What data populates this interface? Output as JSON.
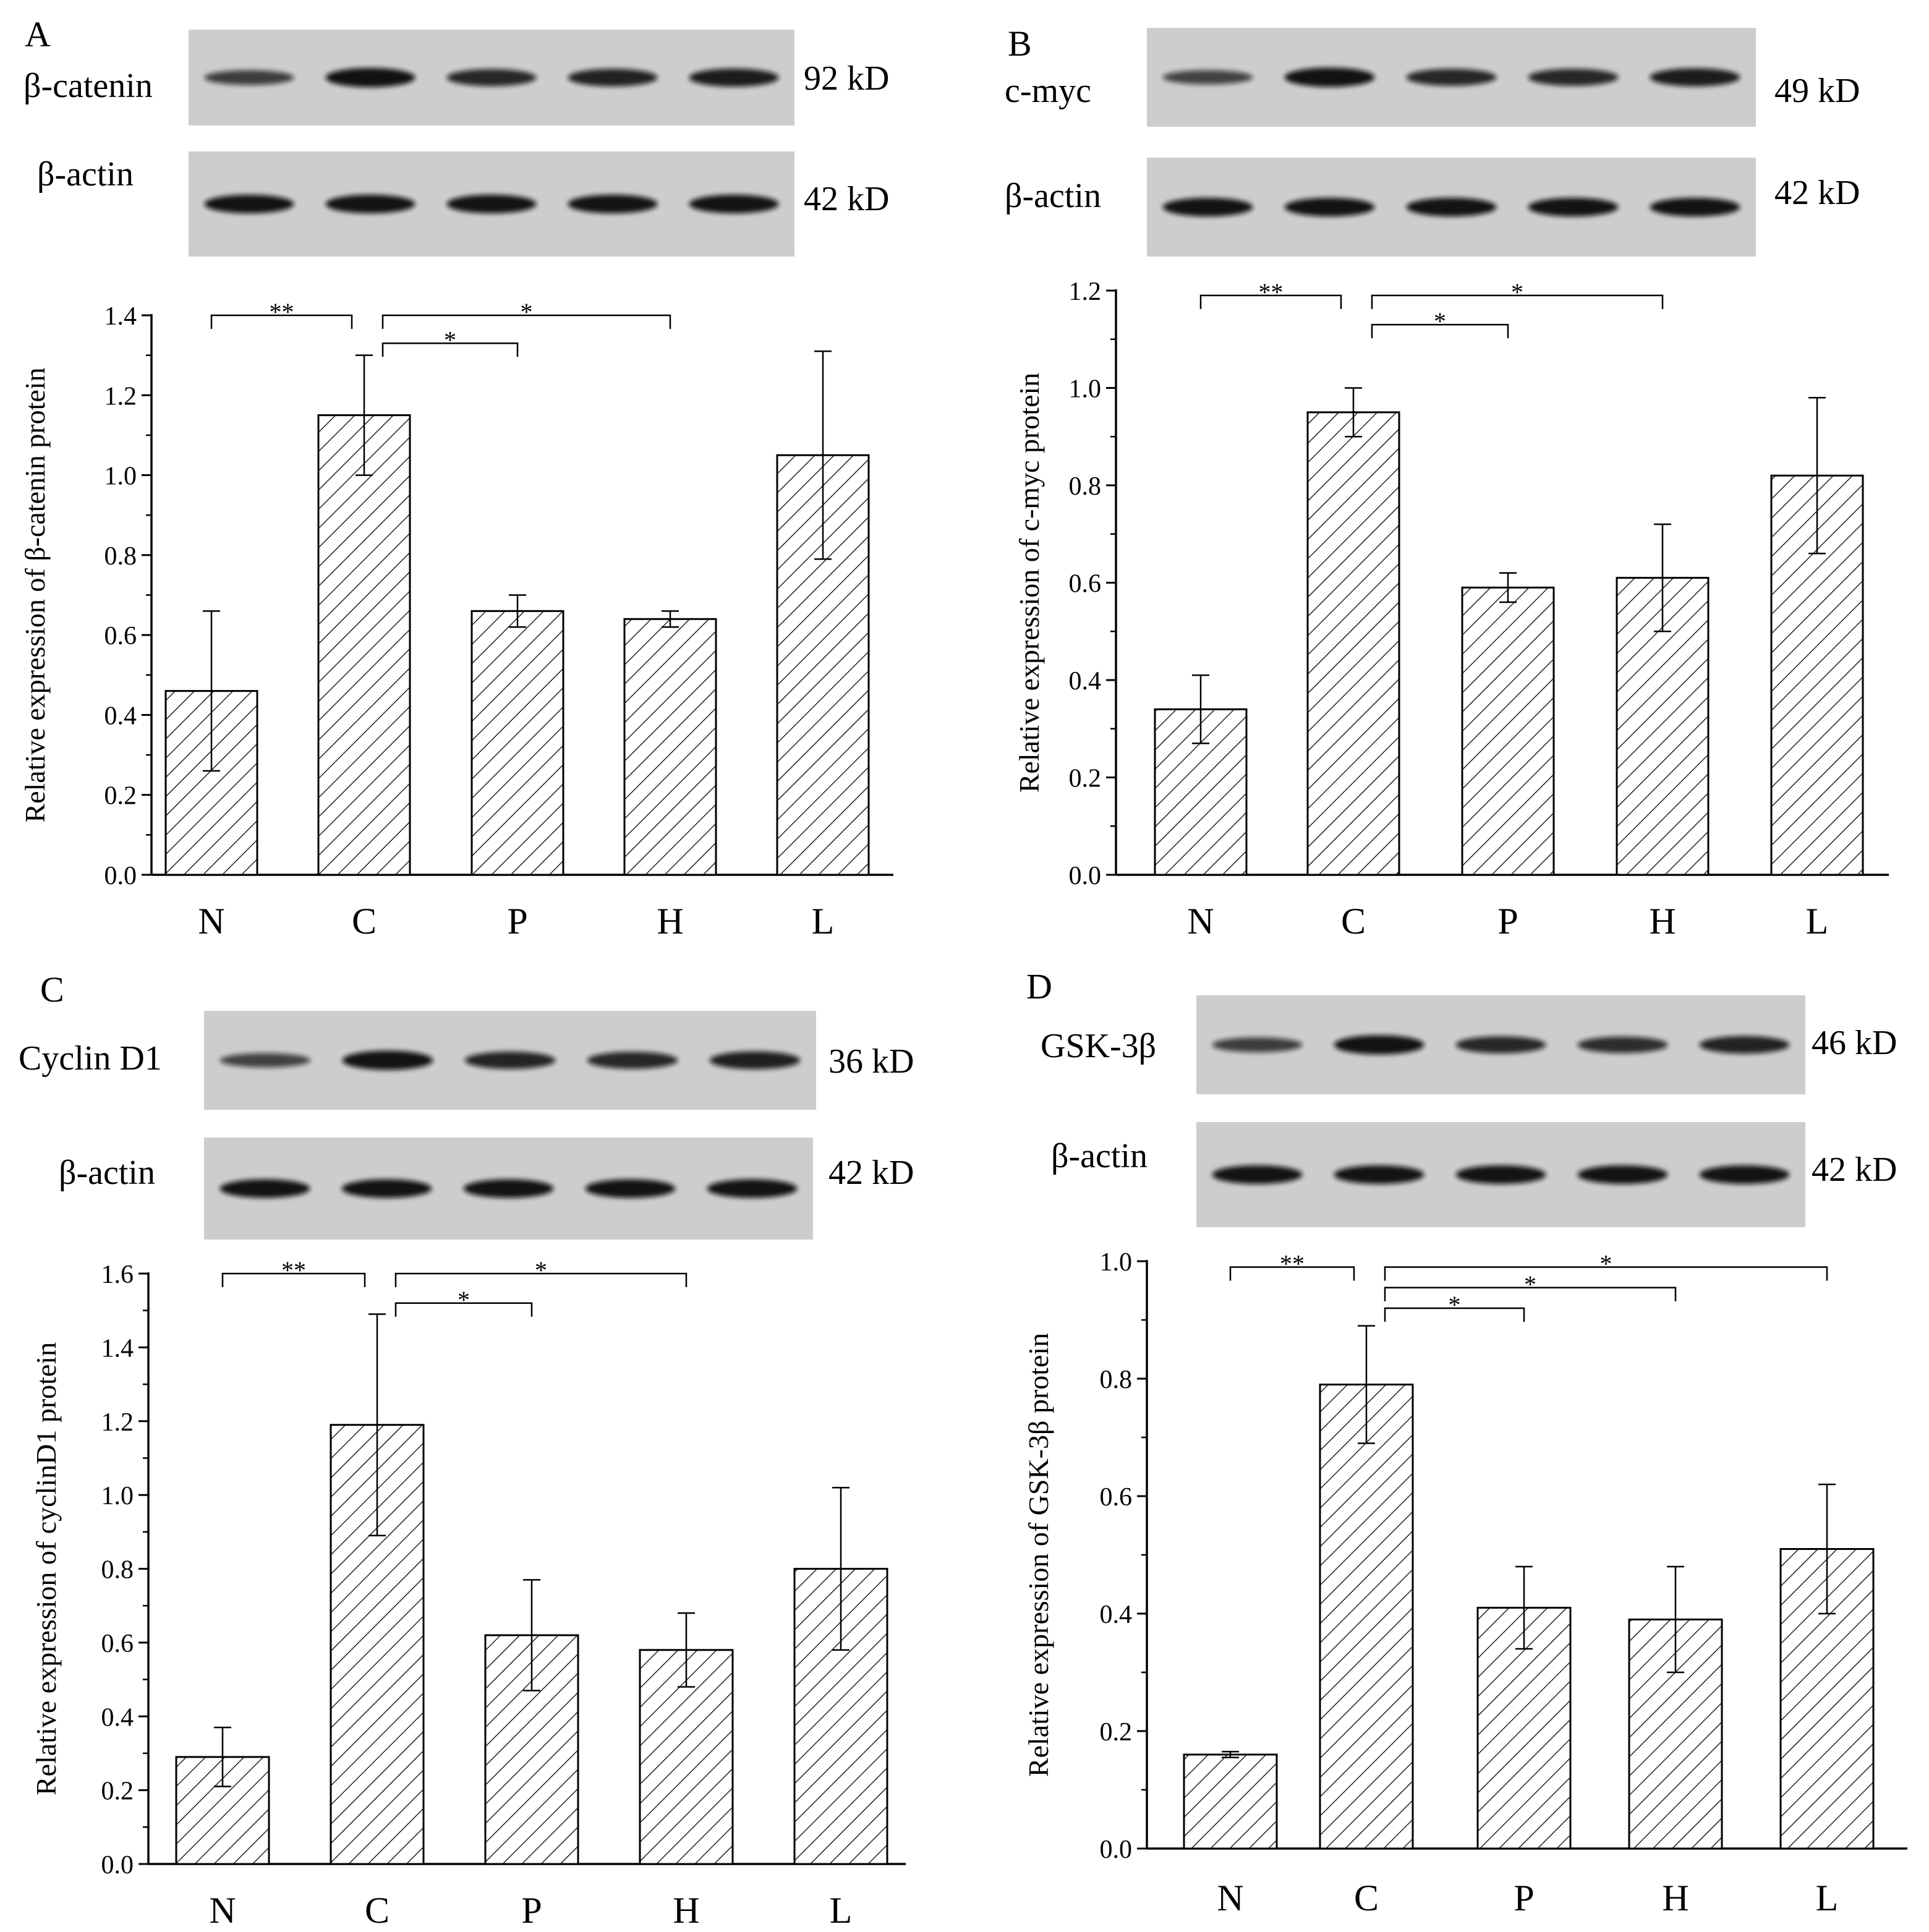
{
  "chart_data": [
    {
      "type": "bar",
      "panel_label": "A",
      "blot": {
        "target": "β-catenin",
        "target_kd": "92 kD",
        "control": "β-actin",
        "control_kd": "42 kD",
        "target_intensity": [
          0.55,
          0.95,
          0.75,
          0.8,
          0.85
        ]
      },
      "categories": [
        "N",
        "C",
        "P",
        "H",
        "L"
      ],
      "values": [
        0.46,
        1.15,
        0.66,
        0.64,
        1.05
      ],
      "errors": [
        0.2,
        0.15,
        0.04,
        0.02,
        0.26
      ],
      "ylabel": "Relative expression of β-catenin protein",
      "ylim": [
        0,
        1.4
      ],
      "yticks": [
        0.0,
        0.2,
        0.4,
        0.6,
        0.8,
        1.0,
        1.2,
        1.4
      ],
      "yticklabels": [
        "0.0",
        "0.2",
        "0.4",
        "0.6",
        "0.8",
        "1.0",
        "1.2",
        "1.4"
      ],
      "significance": [
        {
          "from": 0,
          "to": 1,
          "y": 1.4,
          "label": "**"
        },
        {
          "from": 1,
          "to": 3,
          "y": 1.4,
          "label": "*"
        },
        {
          "from": 1,
          "to": 2,
          "y": 1.33,
          "label": "*"
        }
      ]
    },
    {
      "type": "bar",
      "panel_label": "B",
      "blot": {
        "target": "c-myc",
        "target_kd": "49 kD",
        "control": "β-actin",
        "control_kd": "42 kD",
        "target_intensity": [
          0.5,
          0.95,
          0.75,
          0.75,
          0.85
        ]
      },
      "categories": [
        "N",
        "C",
        "P",
        "H",
        "L"
      ],
      "values": [
        0.34,
        0.95,
        0.59,
        0.61,
        0.82
      ],
      "errors": [
        0.07,
        0.05,
        0.03,
        0.11,
        0.16
      ],
      "ylabel": "Relative expression of c-myc protein",
      "ylim": [
        0,
        1.2
      ],
      "yticks": [
        0.0,
        0.2,
        0.4,
        0.6,
        0.8,
        1.0,
        1.2
      ],
      "yticklabels": [
        "0.0",
        "0.2",
        "0.4",
        "0.6",
        "0.8",
        "1.0",
        "1.2"
      ],
      "significance": [
        {
          "from": 0,
          "to": 1,
          "y": 1.19,
          "label": "**"
        },
        {
          "from": 1,
          "to": 3,
          "y": 1.19,
          "label": "*"
        },
        {
          "from": 1,
          "to": 2,
          "y": 1.13,
          "label": "*"
        }
      ]
    },
    {
      "type": "bar",
      "panel_label": "C",
      "blot": {
        "target": "Cyclin D1",
        "target_kd": "36 kD",
        "control": "β-actin",
        "control_kd": "42 kD",
        "target_intensity": [
          0.5,
          0.95,
          0.78,
          0.75,
          0.82
        ]
      },
      "categories": [
        "N",
        "C",
        "P",
        "H",
        "L"
      ],
      "values": [
        0.29,
        1.19,
        0.62,
        0.58,
        0.8
      ],
      "errors": [
        0.08,
        0.3,
        0.15,
        0.1,
        0.22
      ],
      "ylabel": "Relative expression of cyclinD1 protein",
      "ylim": [
        0,
        1.6
      ],
      "yticks": [
        0.0,
        0.2,
        0.4,
        0.6,
        0.8,
        1.0,
        1.2,
        1.4,
        1.6
      ],
      "yticklabels": [
        "0.0",
        "0.2",
        "0.4",
        "0.6",
        "0.8",
        "1.0",
        "1.2",
        "1.4",
        "1.6"
      ],
      "significance": [
        {
          "from": 0,
          "to": 1,
          "y": 1.6,
          "label": "**"
        },
        {
          "from": 1,
          "to": 3,
          "y": 1.6,
          "label": "*"
        },
        {
          "from": 1,
          "to": 2,
          "y": 1.52,
          "label": "*"
        }
      ]
    },
    {
      "type": "bar",
      "panel_label": "D",
      "blot": {
        "target": "GSK-3β",
        "target_kd": "46 kD",
        "control": "β-actin",
        "control_kd": "42 kD",
        "target_intensity": [
          0.55,
          0.95,
          0.75,
          0.7,
          0.8
        ]
      },
      "categories": [
        "N",
        "C",
        "P",
        "H",
        "L"
      ],
      "values": [
        0.16,
        0.79,
        0.41,
        0.39,
        0.51
      ],
      "errors": [
        0.005,
        0.1,
        0.07,
        0.09,
        0.11
      ],
      "ylabel": "Relative expression of GSK-3β protein",
      "ylim": [
        0,
        1.0
      ],
      "yticks": [
        0.0,
        0.2,
        0.4,
        0.6,
        0.8,
        1.0
      ],
      "yticklabels": [
        "0.0",
        "0.2",
        "0.4",
        "0.6",
        "0.8",
        "1.0"
      ],
      "significance": [
        {
          "from": 0,
          "to": 1,
          "y": 0.99,
          "label": "**"
        },
        {
          "from": 1,
          "to": 4,
          "y": 0.99,
          "label": "*"
        },
        {
          "from": 1,
          "to": 3,
          "y": 0.955,
          "label": "*"
        },
        {
          "from": 1,
          "to": 2,
          "y": 0.92,
          "label": "*"
        }
      ]
    }
  ]
}
